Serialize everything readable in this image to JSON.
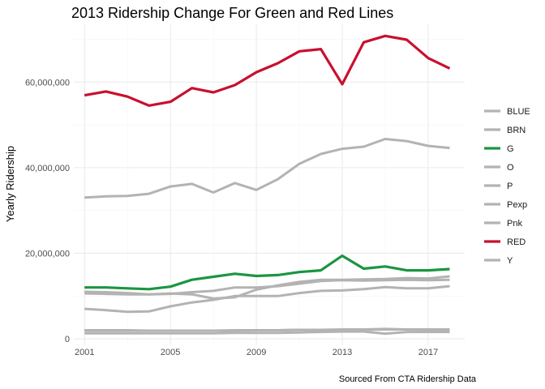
{
  "chart_data": {
    "type": "line",
    "title": "2013 Ridership Change For Green and Red Lines",
    "xlabel": "",
    "ylabel": "Yearly Ridership",
    "caption": "Sourced From CTA Ridership Data",
    "x": [
      2001,
      2002,
      2003,
      2004,
      2005,
      2006,
      2007,
      2008,
      2009,
      2010,
      2011,
      2012,
      2013,
      2014,
      2015,
      2016,
      2017,
      2018
    ],
    "xticks": [
      2001,
      2005,
      2009,
      2013,
      2017
    ],
    "xtick_labels": [
      "2001",
      "2005",
      "2009",
      "2013",
      "2017"
    ],
    "xlim": [
      2000.5,
      2018.7
    ],
    "ylim": [
      -1500000,
      73500000
    ],
    "yticks": [
      0,
      20000000,
      40000000,
      60000000
    ],
    "ytick_labels": [
      "0",
      "20,000,000",
      "40,000,000",
      "60,000,000"
    ],
    "grid": true,
    "legend_position": "right",
    "series": [
      {
        "name": "BLUE",
        "color": "#b3b3b3",
        "highlight": false,
        "values": [
          33000000,
          33300000,
          33400000,
          33900000,
          35600000,
          36200000,
          34200000,
          36400000,
          34800000,
          37300000,
          40900000,
          43200000,
          44400000,
          44900000,
          46700000,
          46200000,
          45100000,
          44600000
        ]
      },
      {
        "name": "BRN",
        "color": "#b3b3b3",
        "highlight": false,
        "values": [
          11000000,
          10900000,
          10700000,
          10400000,
          10600000,
          10400000,
          9400000,
          9700000,
          11500000,
          12500000,
          13300000,
          13800000,
          13800000,
          13900000,
          14000000,
          14200000,
          14100000,
          14600000
        ]
      },
      {
        "name": "G",
        "color": "#1a9641",
        "highlight": true,
        "values": [
          12000000,
          12000000,
          11800000,
          11600000,
          12200000,
          13800000,
          14500000,
          15200000,
          14700000,
          14900000,
          15600000,
          16000000,
          19400000,
          16400000,
          16900000,
          16000000,
          16000000,
          16300000
        ]
      },
      {
        "name": "O",
        "color": "#b3b3b3",
        "highlight": false,
        "values": [
          10600000,
          10500000,
          10400000,
          10400000,
          10500000,
          10900000,
          11200000,
          12000000,
          12000000,
          12300000,
          12900000,
          13500000,
          13700000,
          13600000,
          13700000,
          13800000,
          13700000,
          13800000
        ]
      },
      {
        "name": "P",
        "color": "#b3b3b3",
        "highlight": false,
        "values": [
          1300000,
          1300000,
          1300000,
          1300000,
          1300000,
          1300000,
          1300000,
          1400000,
          1400000,
          1400000,
          1500000,
          1600000,
          1700000,
          1700000,
          1200000,
          1600000,
          1600000,
          1600000
        ]
      },
      {
        "name": "Pexp",
        "color": "#b3b3b3",
        "highlight": false,
        "values": [
          2000000,
          2000000,
          2000000,
          1900000,
          1900000,
          1900000,
          1900000,
          1900000,
          2000000,
          2000000,
          2100000,
          2100000,
          2200000,
          2200000,
          2300000,
          2200000,
          2100000,
          2000000
        ]
      },
      {
        "name": "Pnk",
        "color": "#b3b3b3",
        "highlight": false,
        "values": [
          7000000,
          6700000,
          6300000,
          6400000,
          7600000,
          8500000,
          9100000,
          10000000,
          10000000,
          10000000,
          10700000,
          11200000,
          11300000,
          11600000,
          12100000,
          11800000,
          11800000,
          12300000
        ]
      },
      {
        "name": "RED",
        "color": "#c8102e",
        "highlight": true,
        "values": [
          56900000,
          57800000,
          56600000,
          54500000,
          55400000,
          58600000,
          57600000,
          59300000,
          62300000,
          64400000,
          67200000,
          67700000,
          59500000,
          69300000,
          70800000,
          69900000,
          65600000,
          63200000
        ]
      },
      {
        "name": "Y",
        "color": "#b3b3b3",
        "highlight": false,
        "values": [
          1900000,
          1900000,
          1900000,
          1900000,
          1900000,
          1900000,
          1900000,
          2000000,
          2000000,
          2000000,
          2100000,
          2100000,
          2100000,
          2100000,
          2200000,
          2200000,
          2200000,
          2200000
        ]
      }
    ]
  }
}
